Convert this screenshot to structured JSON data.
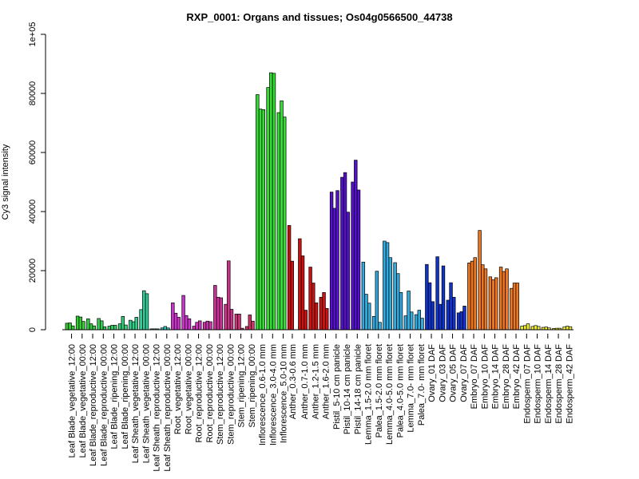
{
  "chart_data": {
    "type": "bar",
    "title": "RXP_0001: Organs and tissues; Os04g0566500_44738",
    "xlabel": "",
    "ylabel": "Cy3 signal intensity",
    "ylim": [
      0,
      100000
    ],
    "yticks": [
      0,
      20000,
      40000,
      60000,
      80000,
      100000
    ],
    "ytick_labels": [
      "0",
      "20000",
      "40000",
      "60000",
      "80000",
      "1e+05"
    ],
    "groups": [
      {
        "label": "Leaf Blade_vegetative_12:00",
        "color": "#33cc33",
        "values": [
          2200,
          2300,
          1300
        ]
      },
      {
        "label": "Leaf Blade_vegetative_00:00",
        "color": "#33cc33",
        "values": [
          4600,
          4300,
          2800
        ]
      },
      {
        "label": "Leaf Blade_reproductive_12:00",
        "color": "#33cc44",
        "values": [
          3700,
          2000,
          1300
        ]
      },
      {
        "label": "Leaf Blade_reproductive_00:00",
        "color": "#33cc55",
        "values": [
          3800,
          3000,
          1000
        ]
      },
      {
        "label": "Leaf Blade_ripening_12:00",
        "color": "#33cc66",
        "values": [
          1200,
          1500,
          1500
        ]
      },
      {
        "label": "Leaf Blade_ripening_00:00",
        "color": "#33cc77",
        "values": [
          2000,
          4500,
          1600
        ]
      },
      {
        "label": "Leaf Sheath_vegetative_12:00",
        "color": "#33cc88",
        "values": [
          3200,
          2700,
          4200
        ]
      },
      {
        "label": "Leaf Sheath_vegetative_00:00",
        "color": "#33cc99",
        "values": [
          6800,
          13200,
          12200
        ]
      },
      {
        "label": "Leaf Sheath_reproductive_12:00",
        "color": "#33ccaa",
        "values": [
          300,
          300,
          300
        ]
      },
      {
        "label": "Leaf Sheath_reproductive_00:00",
        "color": "#33ccbb",
        "values": [
          600,
          1100,
          600
        ]
      },
      {
        "label": "Root_vegetative_12:00",
        "color": "#cc33cc",
        "values": [
          9100,
          5600,
          4200
        ]
      },
      {
        "label": "Root_vegetative_00:00",
        "color": "#cc33cc",
        "values": [
          11600,
          4800,
          3700
        ]
      },
      {
        "label": "Root_reproductive_12:00",
        "color": "#cc33bb",
        "values": [
          1200,
          2500,
          3000
        ]
      },
      {
        "label": "Root_reproductive_00:00",
        "color": "#cc33aa",
        "values": [
          2500,
          2900,
          2700
        ]
      },
      {
        "label": "Stem_reproductive_12:00",
        "color": "#cc3399",
        "values": [
          15000,
          11000,
          10800
        ]
      },
      {
        "label": "Stem_reproductive_00:00",
        "color": "#cc3388",
        "values": [
          8600,
          23300,
          6900
        ]
      },
      {
        "label": "Stem_ripening_12:00",
        "color": "#cc3377",
        "values": [
          5300,
          5300,
          500
        ]
      },
      {
        "label": "Stem_ripening_00:00",
        "color": "#cc3366",
        "values": [
          1100,
          5000,
          2900
        ]
      },
      {
        "label": "Inflorescence_0.6-1.0 mm",
        "color": "#33dd33",
        "values": [
          79600,
          74700,
          74500
        ]
      },
      {
        "label": "Inflorescence_3.0-4.0 mm",
        "color": "#33dd33",
        "values": [
          82000,
          87000,
          86800
        ]
      },
      {
        "label": "Inflorescence_5.0-10 mm",
        "color": "#33dd33",
        "values": [
          73500,
          77500,
          72000
        ]
      },
      {
        "label": "Anther_0.3-0.6 mm",
        "color": "#cc1111",
        "values": [
          35300,
          23200
        ]
      },
      {
        "label": "Anther_0.7-1.0 mm",
        "color": "#cc1111",
        "values": [
          30800,
          25000,
          6600
        ]
      },
      {
        "label": "Anther_1.2-1.5 mm",
        "color": "#cc1111",
        "values": [
          21200,
          15800,
          9100
        ]
      },
      {
        "label": "Anther_1.6-2.0 mm",
        "color": "#cc1111",
        "values": [
          11000,
          12600,
          7200
        ]
      },
      {
        "label": "Pistil_5-10 cm panicle",
        "color": "#5511cc",
        "values": [
          46600,
          41100,
          47100
        ]
      },
      {
        "label": "Pistil_10-14 cm panicle",
        "color": "#5511cc",
        "values": [
          51600,
          53200,
          39800
        ]
      },
      {
        "label": "Pistil_14-18 cm panicle",
        "color": "#5511cc",
        "values": [
          50000,
          57400,
          47300
        ]
      },
      {
        "label": "Lemma_1.5-2.0 mm floret",
        "color": "#33aadd",
        "values": [
          22900,
          12000,
          9000
        ]
      },
      {
        "label": "Palea_1.5-2.0 mm floret",
        "color": "#33aadd",
        "values": [
          4500,
          19800,
          2500
        ]
      },
      {
        "label": "Lemma_4.0-5.0 mm floret",
        "color": "#33aadd",
        "values": [
          30000,
          29500,
          24400
        ]
      },
      {
        "label": "Palea_4.0-5.0 mm floret",
        "color": "#33aadd",
        "values": [
          22700,
          19000,
          12600
        ]
      },
      {
        "label": "Lemma_7.0- mm floret",
        "color": "#33aadd",
        "values": [
          4700,
          13100,
          6000
        ]
      },
      {
        "label": "Palea_7.0- mm floret",
        "color": "#33aadd",
        "values": [
          5100,
          6600,
          3900
        ]
      },
      {
        "label": "Ovary_01 DAF",
        "color": "#1133cc",
        "values": [
          22100,
          15900,
          9500
        ]
      },
      {
        "label": "Ovary_03 DAF",
        "color": "#1133cc",
        "values": [
          24700,
          8600,
          21600
        ]
      },
      {
        "label": "Ovary_05 DAF",
        "color": "#1133cc",
        "values": [
          10000,
          15900,
          11000
        ]
      },
      {
        "label": "Ovary_07 DAF",
        "color": "#1133cc",
        "values": [
          5700,
          6100,
          8000
        ]
      },
      {
        "label": "Embryo_07 DAF",
        "color": "#ee7722",
        "values": [
          22600,
          23200,
          24400
        ]
      },
      {
        "label": "Embryo_10 DAF",
        "color": "#ee7722",
        "values": [
          33600,
          22000,
          20600
        ]
      },
      {
        "label": "Embryo_14 DAF",
        "color": "#ee7722",
        "values": [
          17900,
          16900,
          17600
        ]
      },
      {
        "label": "Embryo_28 DAF",
        "color": "#ee7722",
        "values": [
          21200,
          19700,
          20600
        ]
      },
      {
        "label": "Embryo_42 DAF",
        "color": "#ee7722",
        "values": [
          14000,
          15800,
          15800
        ]
      },
      {
        "label": "Endosperm_07 DAF",
        "color": "#eeee33",
        "values": [
          1200,
          1400,
          2000
        ]
      },
      {
        "label": "Endosperm_10 DAF",
        "color": "#eeee33",
        "values": [
          1100,
          1400,
          1100
        ]
      },
      {
        "label": "Endosperm_14 DAF",
        "color": "#eeee33",
        "values": [
          800,
          900,
          600
        ]
      },
      {
        "label": "Endosperm_28 DAF",
        "color": "#eeee33",
        "values": [
          400,
          500,
          500
        ]
      },
      {
        "label": "Endosperm_42 DAF",
        "color": "#eeee33",
        "values": [
          900,
          1200,
          1000
        ]
      }
    ]
  }
}
